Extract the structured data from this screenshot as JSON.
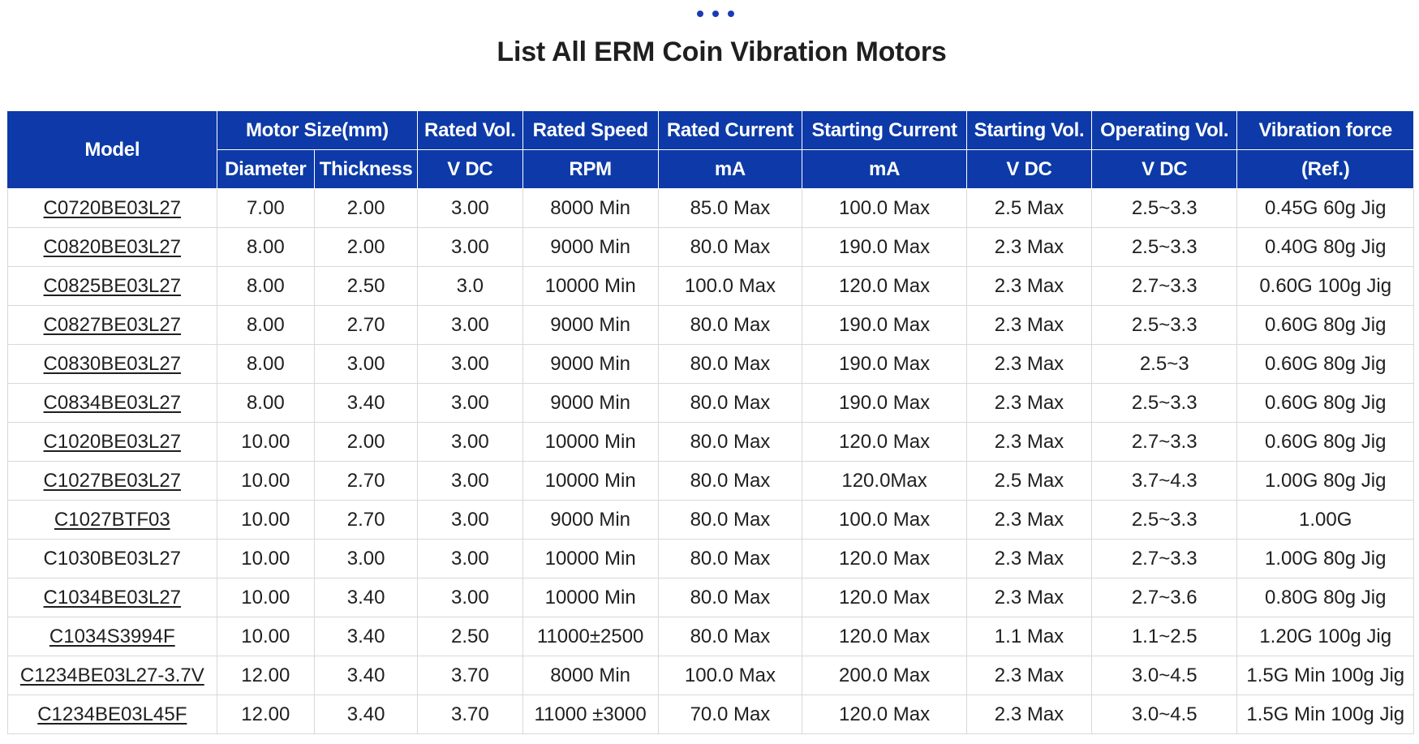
{
  "title": "List All ERM Coin Vibration Motors",
  "accent_color": "#0d3aa8",
  "headers": {
    "model": "Model",
    "motor_size": "Motor Size(mm)",
    "diameter": "Diameter",
    "thickness": "Thickness",
    "rated_vol": "Rated Vol.",
    "rated_vol_unit": "V DC",
    "rated_speed": "Rated Speed",
    "rated_speed_unit": "RPM",
    "rated_current": "Rated Current",
    "rated_current_unit": "mA",
    "starting_current": "Starting Current",
    "starting_current_unit": "mA",
    "starting_vol": "Starting Vol.",
    "starting_vol_unit": "V DC",
    "operating_vol": "Operating Vol.",
    "operating_vol_unit": "V DC",
    "vibration_force": "Vibration force",
    "vibration_force_unit": "(Ref.)"
  },
  "rows": [
    {
      "model": "C0720BE03L27",
      "link": true,
      "diameter": "7.00",
      "thickness": "2.00",
      "rated_vol": "3.00",
      "rated_speed": "8000 Min",
      "rated_current": "85.0 Max",
      "starting_current": "100.0 Max",
      "starting_vol": "2.5 Max",
      "operating_vol": "2.5~3.3",
      "vibration_force": "0.45G 60g Jig"
    },
    {
      "model": "C0820BE03L27",
      "link": true,
      "diameter": "8.00",
      "thickness": "2.00",
      "rated_vol": "3.00",
      "rated_speed": "9000 Min",
      "rated_current": "80.0 Max",
      "starting_current": "190.0 Max",
      "starting_vol": "2.3 Max",
      "operating_vol": "2.5~3.3",
      "vibration_force": "0.40G 80g Jig"
    },
    {
      "model": "C0825BE03L27",
      "link": true,
      "diameter": "8.00",
      "thickness": "2.50",
      "rated_vol": "3.0",
      "rated_speed": "10000 Min",
      "rated_current": "100.0 Max",
      "starting_current": "120.0 Max",
      "starting_vol": "2.3 Max",
      "operating_vol": "2.7~3.3",
      "vibration_force": "0.60G 100g Jig"
    },
    {
      "model": "C0827BE03L27",
      "link": true,
      "diameter": "8.00",
      "thickness": "2.70",
      "rated_vol": "3.00",
      "rated_speed": "9000 Min",
      "rated_current": "80.0 Max",
      "starting_current": "190.0 Max",
      "starting_vol": "2.3 Max",
      "operating_vol": "2.5~3.3",
      "vibration_force": "0.60G 80g Jig"
    },
    {
      "model": "C0830BE03L27",
      "link": true,
      "diameter": "8.00",
      "thickness": "3.00",
      "rated_vol": "3.00",
      "rated_speed": "9000 Min",
      "rated_current": "80.0 Max",
      "starting_current": "190.0 Max",
      "starting_vol": "2.3 Max",
      "operating_vol": "2.5~3",
      "vibration_force": "0.60G 80g Jig"
    },
    {
      "model": "C0834BE03L27",
      "link": true,
      "diameter": "8.00",
      "thickness": "3.40",
      "rated_vol": "3.00",
      "rated_speed": "9000 Min",
      "rated_current": "80.0 Max",
      "starting_current": "190.0 Max",
      "starting_vol": "2.3 Max",
      "operating_vol": "2.5~3.3",
      "vibration_force": "0.60G 80g Jig"
    },
    {
      "model": "C1020BE03L27",
      "link": true,
      "diameter": "10.00",
      "thickness": "2.00",
      "rated_vol": "3.00",
      "rated_speed": "10000 Min",
      "rated_current": "80.0 Max",
      "starting_current": "120.0 Max",
      "starting_vol": "2.3 Max",
      "operating_vol": "2.7~3.3",
      "vibration_force": "0.60G 80g Jig"
    },
    {
      "model": "C1027BE03L27",
      "link": true,
      "diameter": "10.00",
      "thickness": "2.70",
      "rated_vol": "3.00",
      "rated_speed": "10000 Min",
      "rated_current": "80.0 Max",
      "starting_current": "120.0Max",
      "starting_vol": "2.5 Max",
      "operating_vol": "3.7~4.3",
      "vibration_force": "1.00G 80g Jig"
    },
    {
      "model": "C1027BTF03",
      "link": true,
      "diameter": "10.00",
      "thickness": "2.70",
      "rated_vol": "3.00",
      "rated_speed": "9000 Min",
      "rated_current": "80.0 Max",
      "starting_current": "100.0 Max",
      "starting_vol": "2.3 Max",
      "operating_vol": "2.5~3.3",
      "vibration_force": "1.00G"
    },
    {
      "model": "C1030BE03L27",
      "link": false,
      "diameter": "10.00",
      "thickness": "3.00",
      "rated_vol": "3.00",
      "rated_speed": "10000 Min",
      "rated_current": "80.0 Max",
      "starting_current": "120.0 Max",
      "starting_vol": "2.3 Max",
      "operating_vol": "2.7~3.3",
      "vibration_force": "1.00G 80g Jig"
    },
    {
      "model": "C1034BE03L27",
      "link": true,
      "diameter": "10.00",
      "thickness": "3.40",
      "rated_vol": "3.00",
      "rated_speed": "10000 Min",
      "rated_current": "80.0 Max",
      "starting_current": "120.0 Max",
      "starting_vol": "2.3 Max",
      "operating_vol": "2.7~3.6",
      "vibration_force": "0.80G 80g Jig"
    },
    {
      "model": "C1034S3994F",
      "link": true,
      "diameter": "10.00",
      "thickness": "3.40",
      "rated_vol": "2.50",
      "rated_speed": "11000±2500",
      "rated_current": "80.0 Max",
      "starting_current": "120.0 Max",
      "starting_vol": "1.1 Max",
      "operating_vol": "1.1~2.5",
      "vibration_force": "1.20G 100g Jig"
    },
    {
      "model": "C1234BE03L27-3.7V",
      "link": true,
      "diameter": "12.00",
      "thickness": "3.40",
      "rated_vol": "3.70",
      "rated_speed": "8000 Min",
      "rated_current": "100.0 Max",
      "starting_current": "200.0 Max",
      "starting_vol": "2.3 Max",
      "operating_vol": "3.0~4.5",
      "vibration_force": "1.5G Min 100g Jig"
    },
    {
      "model": "C1234BE03L45F",
      "link": true,
      "diameter": "12.00",
      "thickness": "3.40",
      "rated_vol": "3.70",
      "rated_speed": "11000 ±3000",
      "rated_current": "70.0 Max",
      "starting_current": "120.0 Max",
      "starting_vol": "2.3 Max",
      "operating_vol": "3.0~4.5",
      "vibration_force": "1.5G Min 100g Jig"
    }
  ]
}
